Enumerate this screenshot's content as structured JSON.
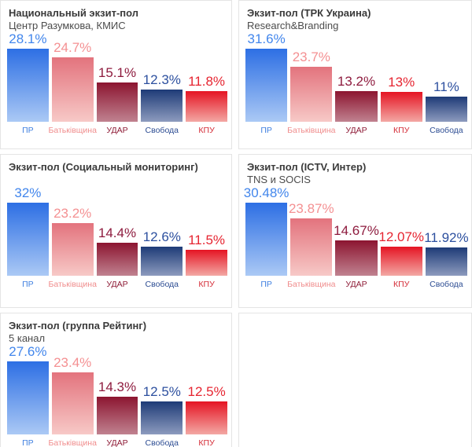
{
  "parties": {
    "ПР": {
      "label_color": "#4080e0",
      "value_color": "#4286ec",
      "grad_top": "#2d6fe4",
      "grad_bottom": "#abc9f5"
    },
    "Батьківщина": {
      "label_color": "#f08d8d",
      "value_color": "#f49092",
      "grad_top": "#e3737d",
      "grad_bottom": "#f7c9c7"
    },
    "УДАР": {
      "label_color": "#8e1b36",
      "value_color": "#8e1b3e",
      "grad_top": "#8c1530",
      "grad_bottom": "#c08290"
    },
    "Свобода": {
      "label_color": "#2d4d93",
      "value_color": "#2d509f",
      "grad_top": "#1e3b77",
      "grad_bottom": "#8d9bbe"
    },
    "КПУ": {
      "label_color": "#d42b36",
      "value_color": "#e62531",
      "grad_top": "#e51423",
      "grad_bottom": "#f3a8a4"
    }
  },
  "chart_data": [
    {
      "type": "bar",
      "title": "Национальный экзит-пол",
      "subtitle": "Центр Разумкова, КМИС",
      "categories": [
        "ПР",
        "Батьківщина",
        "УДАР",
        "Свобода",
        "КПУ"
      ],
      "values": [
        28.1,
        24.7,
        15.1,
        12.3,
        11.8
      ],
      "labels": [
        "28.1%",
        "24.7%",
        "15.1%",
        "12.3%",
        "11.8%"
      ]
    },
    {
      "type": "bar",
      "title": "Экзит-пол (ТРК Украина)",
      "subtitle": "Research&Branding",
      "categories": [
        "ПР",
        "Батьківщина",
        "УДАР",
        "КПУ",
        "Свобода"
      ],
      "values": [
        31.6,
        23.7,
        13.2,
        13,
        11
      ],
      "labels": [
        "31.6%",
        "23.7%",
        "13.2%",
        "13%",
        "11%"
      ]
    },
    {
      "type": "bar",
      "title": "Экзит-пол (Социальный мониторинг)",
      "subtitle": "",
      "categories": [
        "ПР",
        "Батьківщина",
        "УДАР",
        "Свобода",
        "КПУ"
      ],
      "values": [
        32,
        23.2,
        14.4,
        12.6,
        11.5
      ],
      "labels": [
        "32%",
        "23.2%",
        "14.4%",
        "12.6%",
        "11.5%"
      ]
    },
    {
      "type": "bar",
      "title": "Экзит-пол (ICTV, Интер)",
      "subtitle": "TNS и SOCIS",
      "categories": [
        "ПР",
        "Батьківщина",
        "УДАР",
        "КПУ",
        "Свобода"
      ],
      "values": [
        30.48,
        23.87,
        14.67,
        12.07,
        11.92
      ],
      "labels": [
        "30.48%",
        "23.87%",
        "14.67%",
        "12.07%",
        "11.92%"
      ]
    },
    {
      "type": "bar",
      "title": "Экзит-пол (группа Рейтинг)",
      "subtitle": "5 канал",
      "categories": [
        "ПР",
        "Батьківщина",
        "УДАР",
        "Свобода",
        "КПУ"
      ],
      "values": [
        27.6,
        23.4,
        14.3,
        12.5,
        12.5
      ],
      "labels": [
        "27.6%",
        "23.4%",
        "14.3%",
        "12.5%",
        "12.5%"
      ]
    }
  ]
}
